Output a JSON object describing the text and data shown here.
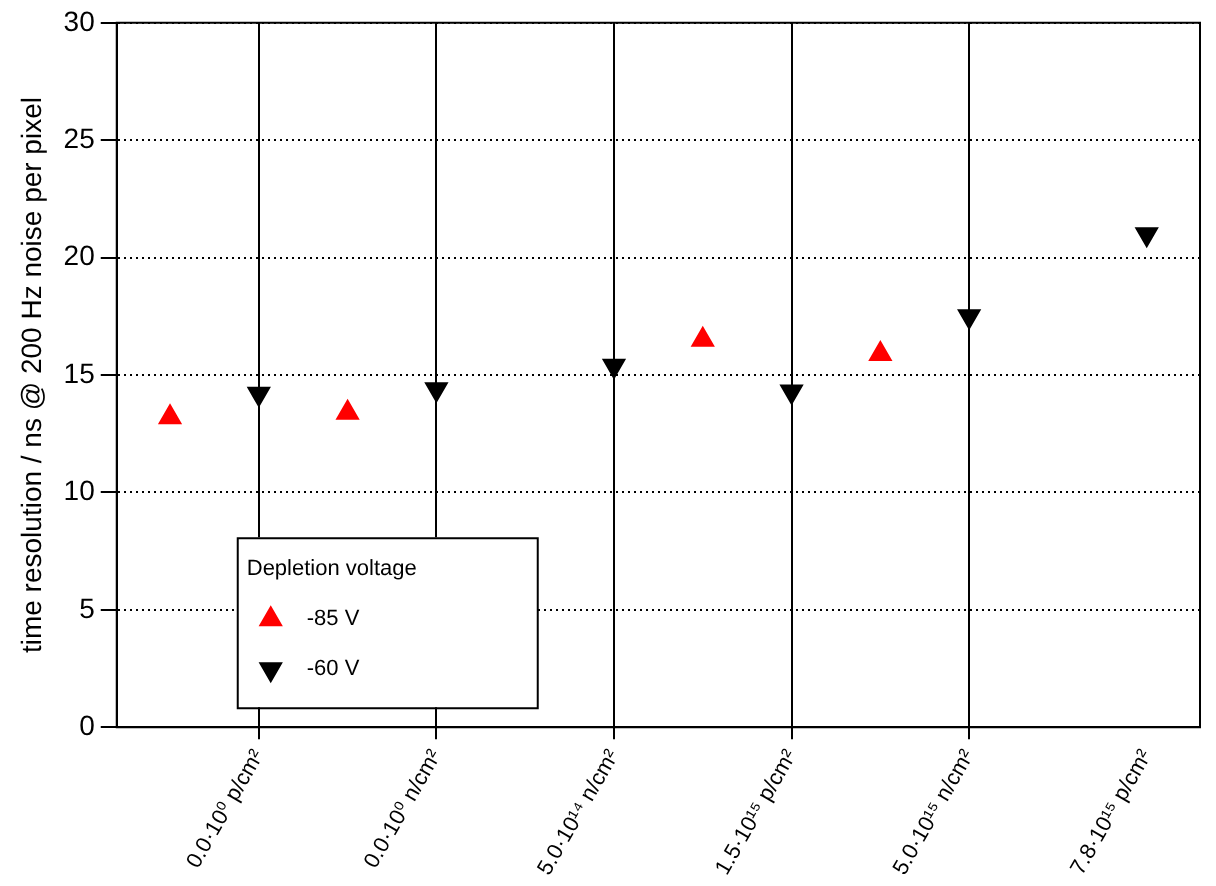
{
  "chart_data": {
    "type": "scatter",
    "ylabel": "time resolution / ns @ 200 Hz noise per pixel",
    "categories": [
      null,
      "0.0·10⁰ p/cm²",
      null,
      "0.0·10⁰ n/cm²",
      null,
      "5.0·10¹⁴ n/cm²",
      null,
      "1.5·10¹⁵ p/cm²",
      null,
      "5.0·10¹⁵ n/cm²",
      null,
      "7.8·10¹⁵ p/cm²"
    ],
    "series": [
      {
        "name": "-85 V",
        "color": "#ff0000",
        "marker": "triangle",
        "values": [
          13.2,
          null,
          13.4,
          null,
          null,
          null,
          16.5,
          null,
          15.9,
          null,
          null,
          null
        ]
      },
      {
        "name": "-60 V",
        "color": "#000000",
        "marker": "triangle-down",
        "values": [
          null,
          14.2,
          null,
          14.4,
          null,
          15.4,
          null,
          14.3,
          null,
          17.5,
          null,
          21
        ]
      }
    ],
    "legend_title": "Depletion voltage",
    "legend": "bottom left",
    "grid": true,
    "ylim": [
      0,
      30
    ],
    "yticks": [
      0,
      5,
      10,
      15,
      20,
      25,
      30
    ]
  }
}
